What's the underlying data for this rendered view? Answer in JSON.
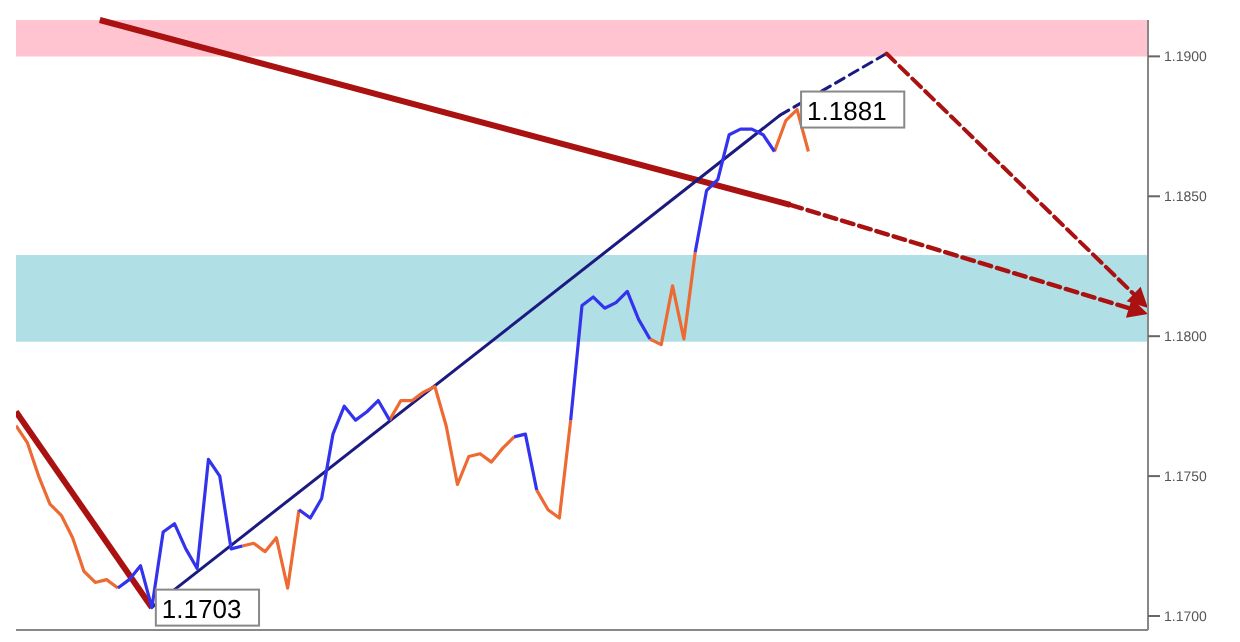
{
  "chart_data": {
    "type": "line",
    "categories": [
      null,
      null,
      null,
      null,
      null,
      null,
      null,
      null,
      null,
      null,
      null,
      null,
      null,
      null,
      null,
      null,
      null,
      null,
      null,
      null,
      null,
      null,
      null,
      null,
      null,
      null,
      null,
      null,
      null,
      null,
      null,
      null,
      null,
      null,
      null,
      null,
      null,
      null,
      null,
      null,
      null,
      null,
      null,
      null,
      null,
      null,
      null,
      null,
      null,
      null,
      null,
      null,
      null,
      null,
      null,
      null,
      null,
      null,
      null,
      null,
      null,
      null,
      null,
      null,
      null,
      null,
      null,
      null,
      null,
      null,
      null,
      null,
      null,
      null,
      null,
      null,
      null,
      null,
      null,
      null,
      null,
      null,
      null,
      null,
      null,
      null,
      null,
      null,
      null,
      null,
      null,
      null,
      null,
      null,
      null,
      null,
      null,
      null,
      null,
      null,
      null
    ],
    "ylim": [
      1.1695,
      1.1913
    ],
    "yticks": [
      {
        "value": 1.17,
        "label": "1.1700"
      },
      {
        "value": 1.175,
        "label": "1.1750"
      },
      {
        "value": 1.18,
        "label": "1.1800"
      },
      {
        "value": 1.185,
        "label": "1.1850"
      },
      {
        "value": 1.19,
        "label": "1.1900"
      }
    ],
    "tick_labels": "y",
    "bands": [
      {
        "axis": "y",
        "from": 1.19,
        "to": 1.1913,
        "color": "#ffc4cf"
      },
      {
        "axis": "y",
        "from": 1.1798,
        "to": 1.1829,
        "color": "#b0e0e6"
      }
    ],
    "series": [
      {
        "color": "#ee6a33",
        "values": [
          1.1768,
          1.1762,
          1.175,
          1.174,
          1.1736,
          1.1728,
          1.1716,
          1.1712,
          1.1713,
          1.171,
          null,
          null,
          null,
          null,
          null,
          null,
          null,
          null,
          null,
          null,
          1.1725,
          1.1726,
          1.1723,
          1.1728,
          1.171,
          1.1738,
          null,
          null,
          null,
          null,
          null,
          null,
          null,
          1.177,
          1.1777,
          1.1777,
          1.178,
          1.1782,
          1.1768,
          1.1747,
          1.1757,
          1.1758,
          1.1755,
          1.176,
          1.1764,
          null,
          1.1745,
          1.1738,
          1.1735,
          1.177,
          null,
          null,
          null,
          null,
          null,
          null,
          1.1799,
          1.1797,
          1.1818,
          1.1799,
          1.183,
          null,
          null,
          null,
          null,
          null,
          null,
          1.1866,
          1.1877,
          1.1881,
          1.1866,
          null,
          null,
          null,
          null,
          null,
          null,
          null,
          null,
          null,
          null,
          null,
          null,
          null,
          null,
          null,
          null,
          null,
          null,
          null,
          null,
          null,
          null,
          null,
          null,
          null,
          null,
          null,
          null,
          null,
          null
        ],
        "value_labels": [
          null,
          null,
          null,
          null,
          null,
          null,
          null,
          null,
          null,
          null,
          null,
          null,
          null,
          null,
          null,
          null,
          null,
          null,
          null,
          null,
          null,
          null,
          null,
          null,
          null,
          null,
          null,
          null,
          null,
          null,
          null,
          null,
          null,
          null,
          null,
          null,
          null,
          null,
          null,
          null,
          null,
          null,
          null,
          null,
          null,
          null,
          null,
          null,
          null,
          null,
          null,
          null,
          null,
          null,
          null,
          null,
          null,
          null,
          null,
          null,
          null,
          null,
          null,
          null,
          null,
          null,
          null,
          null,
          null,
          "1.1881",
          null,
          null,
          null,
          null,
          null,
          null,
          null,
          null,
          null,
          null,
          null,
          null,
          null,
          null,
          null,
          null,
          null,
          null,
          null,
          null,
          null,
          null,
          null,
          null,
          null,
          null,
          null,
          null,
          null,
          null,
          null
        ]
      },
      {
        "color": "#3333ee",
        "values": [
          null,
          null,
          null,
          null,
          null,
          null,
          null,
          null,
          null,
          1.171,
          1.1713,
          1.1718,
          1.1703,
          1.173,
          1.1733,
          1.1724,
          1.1717,
          1.1756,
          1.175,
          1.1724,
          1.1725,
          null,
          null,
          null,
          null,
          1.1738,
          1.1735,
          1.1742,
          1.1765,
          1.1775,
          1.177,
          1.1773,
          1.1777,
          1.177,
          null,
          null,
          null,
          null,
          null,
          null,
          null,
          null,
          null,
          null,
          1.1764,
          1.1765,
          1.1745,
          null,
          null,
          1.177,
          1.1811,
          1.1814,
          1.181,
          1.1812,
          1.1816,
          1.1806,
          1.1799,
          null,
          null,
          null,
          1.183,
          1.1852,
          1.1856,
          1.1872,
          1.1874,
          1.1874,
          1.1872,
          1.1866,
          null,
          null,
          null,
          null,
          null,
          null,
          null,
          null,
          null,
          null,
          null,
          null,
          null,
          null,
          null,
          null,
          null,
          null,
          null,
          null,
          null,
          null,
          null,
          null,
          null,
          null,
          null,
          null,
          null,
          null,
          null,
          null,
          null
        ],
        "value_labels": [
          null,
          null,
          null,
          null,
          null,
          null,
          null,
          null,
          null,
          null,
          null,
          null,
          "1.1703",
          null,
          null,
          null,
          null,
          null,
          null,
          null,
          null,
          null,
          null,
          null,
          null,
          null,
          null,
          null,
          null,
          null,
          null,
          null,
          null,
          null,
          null,
          null,
          null,
          null,
          null,
          null,
          null,
          null,
          null,
          null,
          null,
          null,
          null,
          null,
          null,
          null,
          null,
          null,
          null,
          null,
          null,
          null,
          null,
          null,
          null,
          null,
          null,
          null,
          null,
          null,
          null,
          null,
          null,
          null,
          null,
          null,
          null,
          null,
          null,
          null,
          null,
          null,
          null,
          null,
          null,
          null,
          null,
          null,
          null,
          null,
          null,
          null,
          null,
          null,
          null,
          null,
          null,
          null,
          null,
          null,
          null,
          null,
          null,
          null,
          null,
          null,
          null
        ]
      }
    ]
  }
}
